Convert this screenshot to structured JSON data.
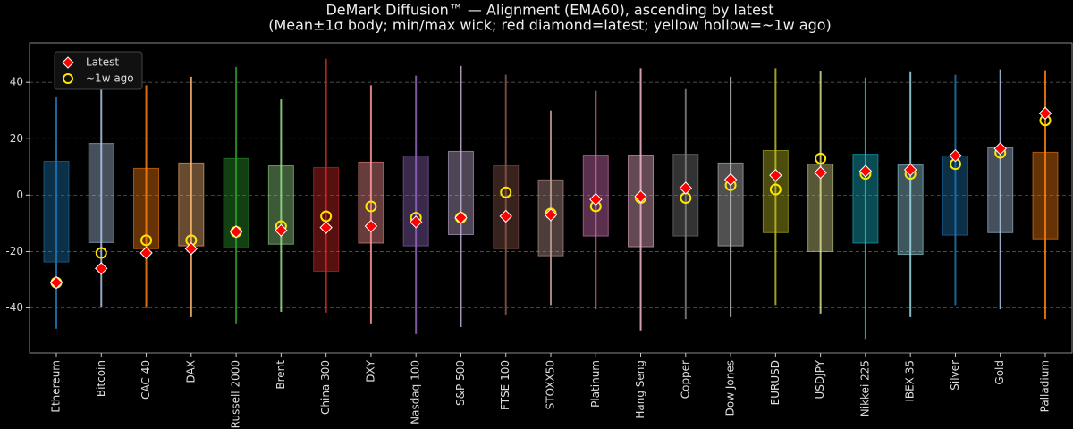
{
  "chart_data": {
    "type": "range-box",
    "title": "DeMark Diffusion™ — Alignment (EMA60), ascending by latest",
    "subtitle": "(Mean±1σ body; min/max wick; red diamond=latest; yellow hollow=~1w ago)",
    "categories": [
      "Ethereum",
      "Bitcoin",
      "CAC 40",
      "DAX",
      "Russell 2000",
      "Brent",
      "China 300",
      "DXY",
      "Nasdaq 100",
      "S&P 500",
      "FTSE 100",
      "STOXX50",
      "Platinum",
      "Hang Seng",
      "Copper",
      "Dow Jones",
      "EURUSD",
      "USDJPY",
      "Nikkei 225",
      "IBEX 35",
      "Silver",
      "Gold",
      "Palladium"
    ],
    "colors": [
      "#1f77b4",
      "#aec7e8",
      "#ff7f0e",
      "#ffbb78",
      "#2ca02c",
      "#98df8a",
      "#d62728",
      "#ff9896",
      "#9467bd",
      "#c5b0d5",
      "#8c564b",
      "#c49c94",
      "#e377c2",
      "#f7b6d2",
      "#7f7f7f",
      "#c7c7c7",
      "#bcbd22",
      "#dbdb8d",
      "#17becf",
      "#9edae5",
      "#1f77b4",
      "#aec7e8",
      "#ff7f0e"
    ],
    "box_low": [
      -23.7,
      -16.8,
      -19,
      -18,
      -18.7,
      -17.4,
      -27,
      -17,
      -18,
      -14,
      -19,
      -21.5,
      -14.5,
      -18.3,
      -14.5,
      -18,
      -13.3,
      -20,
      -17,
      -21,
      -14.2,
      -13.3,
      -15.5
    ],
    "box_high": [
      12,
      18.3,
      9.5,
      11.4,
      13,
      10.4,
      9.8,
      11.7,
      13.9,
      15.5,
      10.4,
      5.4,
      14.2,
      14.2,
      14.5,
      11.4,
      15.8,
      11,
      14.5,
      10.7,
      13.9,
      16.8,
      15.2
    ],
    "wick_low": [
      -47.4,
      -39.8,
      -40,
      -43.3,
      -45.5,
      -41.4,
      -41.7,
      -45.5,
      -49.3,
      -46.8,
      -42.4,
      -39,
      -40.5,
      -48,
      -44,
      -43.3,
      -39,
      -42,
      -51,
      -43.3,
      -39,
      -40.5,
      -44
    ],
    "wick_high": [
      34.8,
      43.6,
      39,
      42,
      45.5,
      34,
      48.4,
      39,
      42.4,
      45.8,
      42.7,
      30,
      37,
      45,
      37.6,
      42,
      45,
      44,
      41.7,
      43.6,
      42.7,
      44.6,
      44.3
    ],
    "series": [
      {
        "name": "Latest",
        "color": "#ff0000",
        "values": [
          -31,
          -26,
          -20.5,
          -19,
          -13,
          -12.5,
          -11.5,
          -11,
          -9.5,
          -8,
          -7.5,
          -7,
          -1.5,
          -0.5,
          2.5,
          5.5,
          7,
          8,
          8.5,
          9,
          14,
          16.5,
          29
        ]
      },
      {
        "name": "~1w ago",
        "color": "#ffe600",
        "values": [
          -31,
          -20.5,
          -16,
          -16,
          -13,
          -11,
          -7.5,
          -4,
          -8,
          -8,
          1,
          -6.5,
          -4,
          -1,
          -1,
          3.5,
          2,
          13,
          7.5,
          7.5,
          11,
          15,
          26.5
        ]
      }
    ],
    "ylim": [
      -56,
      54
    ],
    "yticks": [
      -40,
      -20,
      0,
      20,
      40
    ],
    "grid": true,
    "legend": "upper left"
  }
}
